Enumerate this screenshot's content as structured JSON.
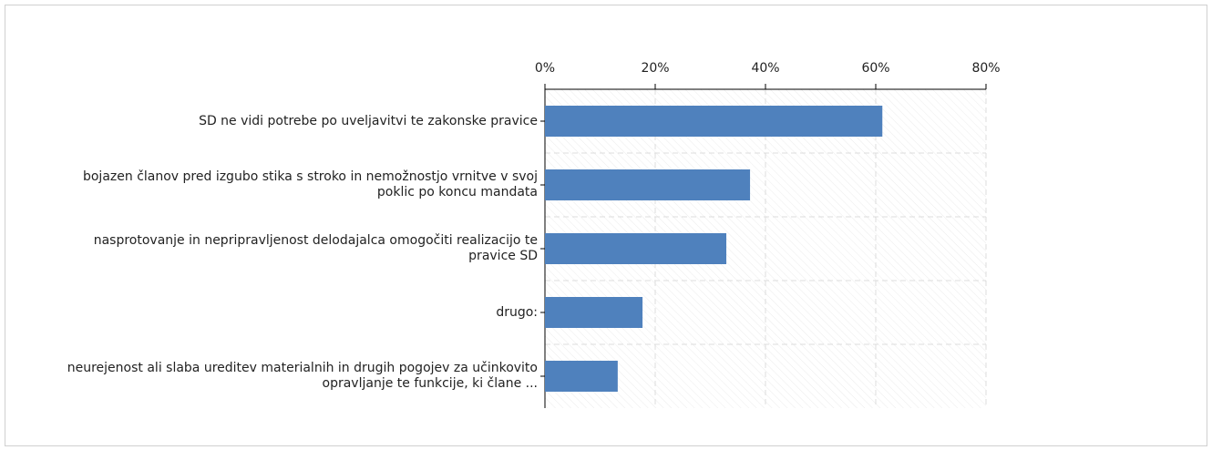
{
  "chart_data": {
    "type": "hbar",
    "categories": [
      "SD ne vidi potrebe po uveljavitvi te zakonske pravice",
      "bojazen članov pred izgubo stika s stroko in nemožnostjo vrnitve v svoj poklic po koncu mandata",
      "nasprotovanje in nepripravljenost delodajalca omogočiti realizacijo te pravice SD",
      "drugo:",
      "neurejenost ali slaba ureditev materialnih in drugih pogojev za učinkovito opravljanje te funkcije, ki člane ..."
    ],
    "values": [
      61.2,
      37.2,
      32.9,
      17.7,
      13.2
    ],
    "color": "#4f81bd",
    "xlim": [
      0,
      80
    ],
    "xticks": [
      {
        "value": 0,
        "label": "0%"
      },
      {
        "value": 20,
        "label": "20%"
      },
      {
        "value": 40,
        "label": "40%"
      },
      {
        "value": 60,
        "label": "60%"
      },
      {
        "value": 80,
        "label": "80%"
      }
    ],
    "grid": true
  }
}
